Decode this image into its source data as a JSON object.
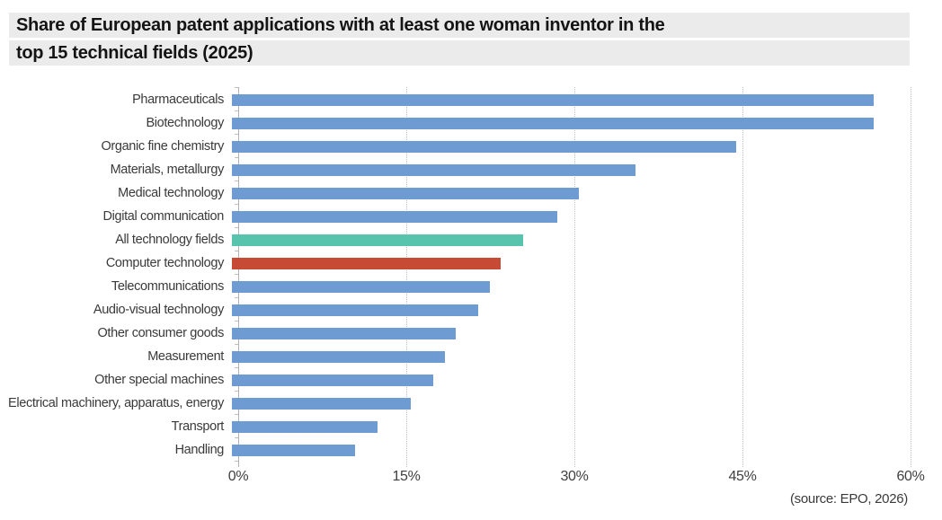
{
  "title": {
    "line1": "Share of European patent applications with at least one woman inventor in the",
    "line2": "top 15 technical fields (2025)"
  },
  "source_note": "(source: EPO, 2026)",
  "chart_data": {
    "type": "bar",
    "orientation": "horizontal",
    "title": "Share of European patent applications with at least one woman inventor in the top 15 technical fields (2025)",
    "xlabel": "",
    "ylabel": "",
    "xlim": [
      0,
      60
    ],
    "grid": "vertical-dotted",
    "legend": "none",
    "categories": [
      "Pharmaceuticals",
      "Biotechnology",
      "Organic fine chemistry",
      "Materials, metallurgy",
      "Medical technology",
      "Digital communication",
      "All technology fields",
      "Computer technology",
      "Telecommunications",
      "Audio-visual technology",
      "Other consumer goods",
      "Measurement",
      "Other special machines",
      "Electrical machinery, apparatus, energy",
      "Transport",
      "Handling"
    ],
    "values": [
      57.3,
      57.3,
      45,
      36,
      31,
      29,
      26,
      24,
      23,
      22,
      20,
      19,
      18,
      16,
      13,
      11
    ],
    "xticks": [
      {
        "value": 0,
        "label": "0%"
      },
      {
        "value": 15,
        "label": "15%"
      },
      {
        "value": 30,
        "label": "30%"
      },
      {
        "value": 45,
        "label": "45%"
      },
      {
        "value": 60,
        "label": "60%"
      }
    ],
    "colors": {
      "default_bar": "#6e9bd2",
      "all_technology_fields_bar": "#58c4ae",
      "computer_technology_bar": "#c64a34",
      "title_background": "#ebebeb",
      "gridline": "#bfbfbf"
    },
    "highlighted_categories": {
      "All technology fields": "#58c4ae",
      "Computer technology": "#c64a34"
    }
  }
}
